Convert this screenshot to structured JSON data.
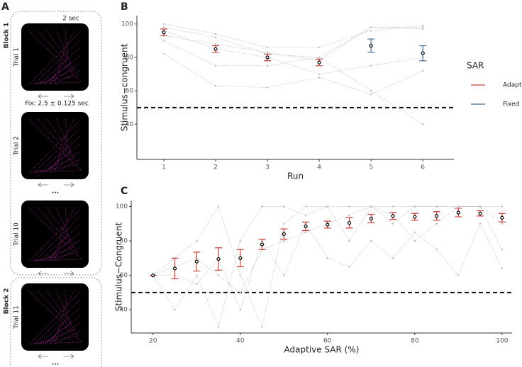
{
  "panel_a": {
    "label": "A",
    "blocks": [
      {
        "title": "Block 1",
        "trials": [
          "Trial 1",
          "Trial 2",
          "Trial 10"
        ]
      },
      {
        "title": "Block 2",
        "trials": [
          "Trial 11"
        ]
      }
    ],
    "duration": "2 sec",
    "fixation": "Fix: 2.5 ± 0.125 sec",
    "ellipsis_1": "...",
    "ellipsis_2": "..."
  },
  "legend": {
    "title": "SAR"
  },
  "chart_data": [
    {
      "type": "line",
      "panel": "B",
      "y_label": "Stimulus−congruent",
      "x_label": "Run",
      "xlim": [
        0.48,
        6.6
      ],
      "ylim": [
        19,
        105
      ],
      "xticks": [
        1,
        2,
        3,
        4,
        5,
        6
      ],
      "yticks": [
        40,
        60,
        80,
        100
      ],
      "hline": 50,
      "series": [
        {
          "name": "Adaptive",
          "color": "#c8413b",
          "x": [
            1,
            2,
            3,
            4
          ],
          "values": [
            95,
            85,
            80,
            77
          ],
          "errors": [
            2,
            2,
            2,
            2
          ]
        },
        {
          "name": "Fixed",
          "color": "#4a6f9a",
          "x": [
            5,
            6
          ],
          "values": [
            87,
            82.5
          ],
          "errors": [
            4,
            4.5
          ]
        }
      ],
      "subject_x": [
        1,
        2,
        3,
        4,
        5,
        6
      ],
      "subjects": [
        [
          98,
          92,
          82,
          80,
          98,
          97
        ],
        [
          93,
          88,
          83,
          78,
          98,
          98
        ],
        [
          90,
          75,
          75,
          80,
          60,
          40
        ],
        [
          96,
          85,
          80,
          70,
          75,
          80
        ],
        [
          82,
          63,
          62,
          68,
          58,
          72
        ],
        [
          100,
          94,
          86,
          86,
          96,
          99
        ]
      ]
    },
    {
      "type": "line",
      "panel": "C",
      "y_label": "Stimulus−Congruent",
      "x_label": "Adaptive SAR (%)",
      "xlim": [
        15,
        102.3
      ],
      "ylim": [
        26.5,
        103.5
      ],
      "xticks": [
        20,
        40,
        60,
        80,
        100
      ],
      "yticks": [
        40,
        60,
        80,
        100
      ],
      "hline": 50,
      "series": [
        {
          "name": "Adaptive",
          "color": "#c8413b",
          "x": [
            20,
            25,
            30,
            35,
            40,
            45,
            50,
            55,
            60,
            65,
            70,
            75,
            80,
            85,
            90,
            95,
            100
          ],
          "values": [
            60,
            64,
            68,
            69.5,
            70,
            78,
            84,
            88.5,
            89.5,
            90.5,
            93,
            94.5,
            94,
            94.5,
            96.5,
            96,
            93.5
          ],
          "errors": [
            0,
            6,
            5.5,
            6.5,
            5,
            3,
            3,
            2.5,
            2,
            3,
            2.5,
            2,
            2,
            2.5,
            2.5,
            1.5,
            2.5
          ]
        }
      ],
      "subject_x": [
        20,
        25,
        30,
        35,
        40,
        45,
        50,
        55,
        60,
        65,
        70,
        75,
        80,
        85,
        90,
        95,
        100
      ],
      "subjects": [
        [
          60,
          40,
          60,
          30,
          80,
          100,
          100,
          95,
          100,
          100,
          100,
          100,
          100,
          100,
          100,
          100,
          100
        ],
        [
          60,
          70,
          80,
          100,
          60,
          30,
          90,
          100,
          100,
          80,
          100,
          90,
          100,
          100,
          100,
          100,
          90
        ],
        [
          60,
          65,
          70,
          60,
          50,
          75,
          80,
          85,
          90,
          95,
          100,
          95,
          80,
          90,
          100,
          100,
          75
        ],
        [
          60,
          60,
          55,
          70,
          40,
          80,
          60,
          90,
          70,
          65,
          80,
          70,
          85,
          75,
          60,
          90,
          64
        ]
      ]
    }
  ]
}
